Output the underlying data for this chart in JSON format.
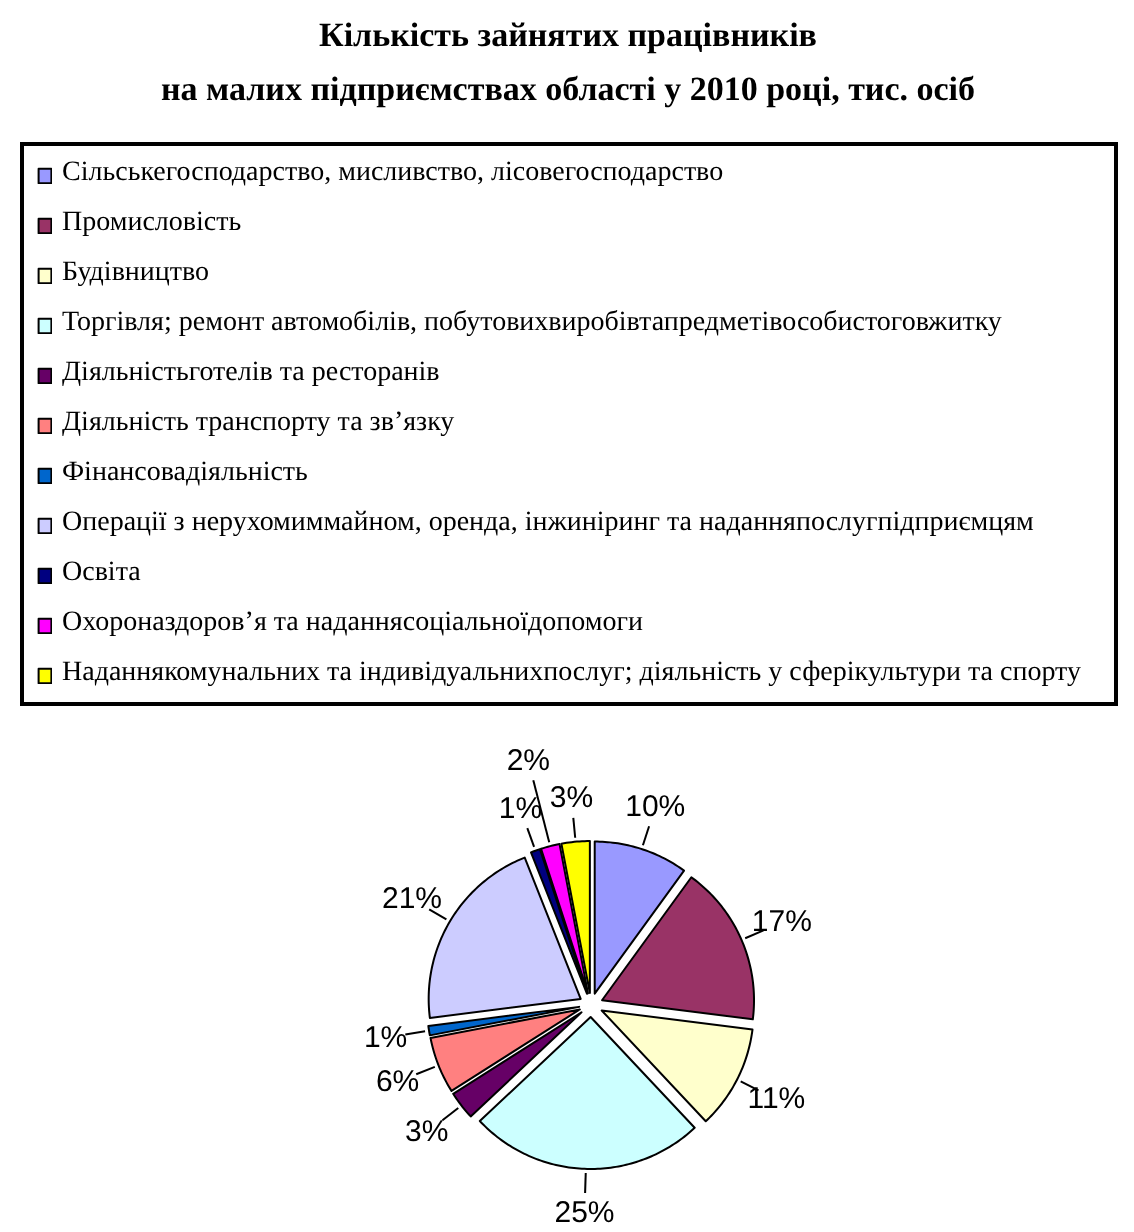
{
  "chart_data": {
    "type": "pie",
    "title": "Кількість зайнятих працівників\nна малих підприємствах області у 2010 році, тис. осіб",
    "categories": [
      "Сільськегосподарство, мисливство, лісовегосподарство",
      "Промисловість",
      "Будівництво",
      "Торгівля; ремонт автомобілів, побутовихвиробівтапредметівособистоговжитку",
      "Діяльністьготелів та ресторанів",
      "Діяльність транспорту та зв’язку",
      "Фінансовадіяльність",
      "Операції з нерухомиммайном, оренда, інжиніринг та наданняпослугпідприємцям",
      "Освіта",
      "Охороназдоров’я та наданнясоціальноїдопомоги",
      "Наданнякомунальних та індивідуальнихпослуг; діяльність у сферікультури та спорту"
    ],
    "values": [
      10,
      17,
      11,
      25,
      3,
      6,
      1,
      21,
      1,
      2,
      3
    ],
    "colors": [
      "#9999ff",
      "#993366",
      "#ffffcc",
      "#ccffff",
      "#660066",
      "#ff8080",
      "#0066cc",
      "#ccccff",
      "#000080",
      "#ff00ff",
      "#ffff00"
    ],
    "value_labels": [
      "10%",
      "17%",
      "11%",
      "25%",
      "3%",
      "6%",
      "1%",
      "21%",
      "1%",
      "2%",
      "3%"
    ],
    "legend": "top"
  }
}
